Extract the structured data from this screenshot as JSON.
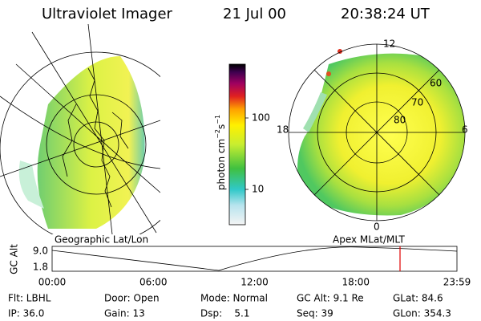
{
  "header": {
    "title": "Ultraviolet Imager",
    "date": "21 Jul 00",
    "time": "20:38:24 UT"
  },
  "colorbar": {
    "label": {
      "base": "photon cm",
      "exp1": "−2",
      "mid": "s",
      "exp2": "−1"
    },
    "ticks": [
      "100",
      "10"
    ]
  },
  "polar_plot": {
    "mlt_labels": [
      "12",
      "18",
      "6",
      "0"
    ],
    "mlat_labels": [
      "60",
      "70",
      "80"
    ]
  },
  "altitude_plot": {
    "left_label": "Geographic Lat/Lon",
    "right_label": "Apex MLat/MLT",
    "ylabel": "GC Alt",
    "yticks": [
      "9.0",
      "1.8"
    ],
    "xticks": [
      "00:00",
      "06:00",
      "12:00",
      "18:00",
      "23:59"
    ]
  },
  "info": {
    "rows": [
      [
        "Flt: LBHL",
        "Door: Open",
        "Mode: Normal",
        "GC Alt: 9.1 Re",
        "GLat: 84.6"
      ],
      [
        "IP: 36.0",
        "Gain: 13",
        "Dsp:    5.1",
        "Seq: 39",
        "GLon: 354.3"
      ]
    ]
  }
}
